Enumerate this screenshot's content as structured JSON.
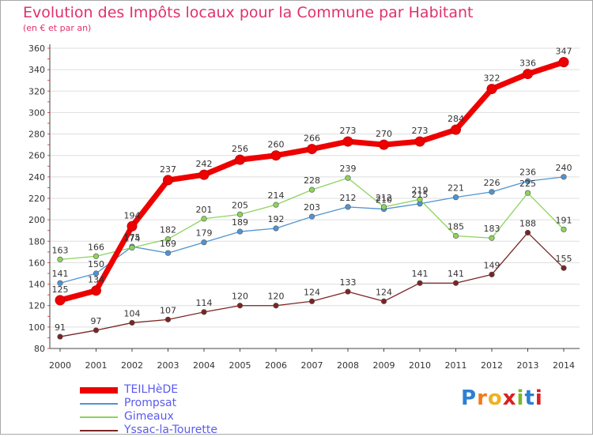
{
  "title": "Evolution des Impôts locaux pour la Commune par Habitant",
  "subtitle": "(en € et par an)",
  "logo": {
    "text": "Proxiti",
    "letters": [
      "P",
      "r",
      "o",
      "x",
      "i",
      "t",
      "i"
    ],
    "colors": [
      "#2b7fd4",
      "#f07a1a",
      "#f0b020",
      "#d92020",
      "#7ab828",
      "#2b7fd4",
      "#d92020"
    ]
  },
  "chart_data": {
    "type": "line",
    "title": "Evolution des Impôts locaux pour la Commune par Habitant",
    "subtitle": "(en € et par an)",
    "x": [
      2000,
      2001,
      2002,
      2003,
      2004,
      2005,
      2006,
      2007,
      2008,
      2009,
      2010,
      2011,
      2012,
      2013,
      2014
    ],
    "xlabels": [
      "2000",
      "2001",
      "2002",
      "2003",
      "2004",
      "2005",
      "2006",
      "2007",
      "2008",
      "2009",
      "2010",
      "2011",
      "2012",
      "2013",
      "2014"
    ],
    "ylim": [
      80,
      360
    ],
    "yticks": [
      80,
      100,
      120,
      140,
      160,
      180,
      200,
      220,
      240,
      260,
      280,
      300,
      320,
      340,
      360
    ],
    "grid": "horizontal",
    "legend_position": "bottom-left",
    "series": [
      {
        "name": "TEILHèDE",
        "color": "#ee0000",
        "emphasis": "thick",
        "values": [
          125,
          134,
          194,
          237,
          242,
          256,
          260,
          266,
          273,
          270,
          273,
          284,
          322,
          336,
          347
        ],
        "labels": [
          "125",
          "134",
          "194",
          "237",
          "242",
          "256",
          "260",
          "266",
          "273",
          "270",
          "273",
          "284",
          "322",
          "336",
          "347"
        ]
      },
      {
        "name": "Prompsat",
        "color": "#4f94d2",
        "values": [
          141,
          150,
          175,
          169,
          179,
          189,
          192,
          203,
          212,
          210,
          215,
          221,
          226,
          236,
          240
        ],
        "labels": [
          "141",
          "150",
          "175",
          "169",
          "179",
          "189",
          "192",
          "203",
          "212",
          "210",
          "215",
          "221",
          "226",
          "236",
          "240"
        ]
      },
      {
        "name": "Gimeaux",
        "color": "#8dd35f",
        "values": [
          163,
          166,
          174,
          182,
          201,
          205,
          214,
          228,
          239,
          212,
          219,
          185,
          183,
          225,
          191
        ],
        "labels": [
          "163",
          "166",
          "174",
          "182",
          "201",
          "205",
          "214",
          "228",
          "239",
          "212",
          "219",
          "185",
          "183",
          "225",
          "191"
        ]
      },
      {
        "name": "Yssac-la-Tourette",
        "color": "#7a2424",
        "values": [
          91,
          97,
          104,
          107,
          114,
          120,
          120,
          124,
          133,
          124,
          141,
          141,
          149,
          188,
          155
        ],
        "labels": [
          "91",
          "97",
          "104",
          "107",
          "114",
          "120",
          "120",
          "124",
          "133",
          "124",
          "141",
          "141",
          "149",
          "188",
          "155"
        ]
      }
    ]
  }
}
